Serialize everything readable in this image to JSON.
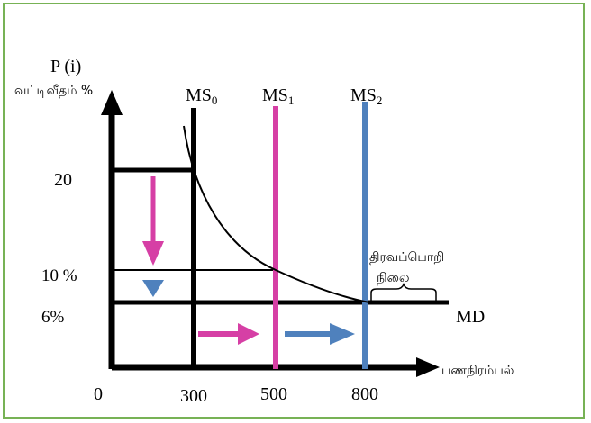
{
  "y_axis": {
    "label_line1": "P (i)",
    "label_line2": "வட்டிவீதம்  %",
    "ticks": [
      "20",
      "10 %",
      "6%"
    ]
  },
  "x_axis": {
    "label": "பணநிரம்பல்",
    "origin": "0",
    "ticks": [
      "300",
      "500",
      "800"
    ]
  },
  "money_supply_lines": [
    {
      "base": "MS",
      "sub": "0",
      "color": "#000000"
    },
    {
      "base": "MS",
      "sub": "1",
      "color": "#d63fa5"
    },
    {
      "base": "MS",
      "sub": "2",
      "color": "#4f81bd"
    }
  ],
  "demand_curve": {
    "label": "MD"
  },
  "liquidity_trap": {
    "line1": "திரவப்பொறி",
    "line2": "நிலை"
  },
  "colors": {
    "frame": "#77b255",
    "axis": "#000000",
    "magenta": "#d63fa5",
    "blue": "#4f81bd"
  }
}
